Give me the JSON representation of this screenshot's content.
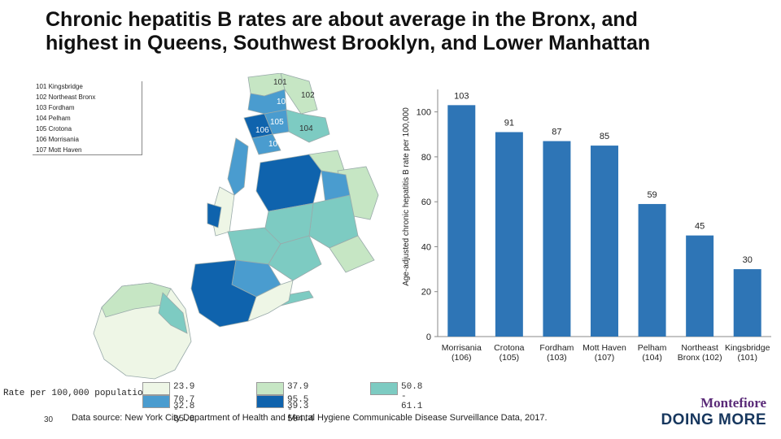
{
  "title_line1": "Chronic hepatitis B rates are about average in the Bronx, and",
  "title_line2": "highest in Queens, Southwest Brooklyn, and Lower Manhattan",
  "map": {
    "legend_items": [
      "101 Kingsbridge",
      "102 Northeast Bronx",
      "103 Fordham",
      "104 Pelham",
      "105 Crotona",
      "106 Morrisania",
      "107 Mott Haven"
    ],
    "callouts": [
      "101",
      "102",
      "103",
      "104",
      "105",
      "106",
      "107"
    ],
    "rate_title": "Rate per 100,000 population",
    "scale": [
      {
        "label": "23.9 - 32.8",
        "color": "#eef6e6"
      },
      {
        "label": "37.9 - 39.3",
        "color": "#c6e6c4"
      },
      {
        "label": "50.8 - 61.1",
        "color": "#7dcbc2"
      },
      {
        "label": "70.7 - 85.8",
        "color": "#4a9ccf"
      },
      {
        "label": "95.5 - 504.4",
        "color": "#0f63ad"
      }
    ]
  },
  "chart_data": {
    "type": "bar",
    "categories": [
      "Morrisania (106)",
      "Crotona (105)",
      "Fordham (103)",
      "Mott Haven (107)",
      "Pelham (104)",
      "Northeast Bronx (102)",
      "Kingsbridge (101)"
    ],
    "category_lines": [
      [
        "Morrisania",
        "(106)"
      ],
      [
        "Crotona",
        "(105)"
      ],
      [
        "Fordham",
        "(103)"
      ],
      [
        "Mott Haven",
        "(107)"
      ],
      [
        "Pelham",
        "(104)"
      ],
      [
        "Northeast",
        "Bronx (102)"
      ],
      [
        "Kingsbridge",
        "(101)"
      ]
    ],
    "values": [
      103,
      91,
      87,
      85,
      59,
      45,
      30
    ],
    "ylabel": "Age-adjusted chronic hepatitis B rate per 100,000",
    "ylim": [
      0,
      110
    ],
    "yticks": [
      0,
      20,
      40,
      60,
      80,
      100
    ],
    "bar_color": "#2e75b6",
    "grid": false
  },
  "footer": {
    "page_number": "30",
    "source": "Data source: New York City Department of Health and Mental Hygiene Communicable Disease Surveillance Data, 2017."
  },
  "logo": {
    "brand": "Montefiore",
    "tagline": "DOING MORE"
  }
}
